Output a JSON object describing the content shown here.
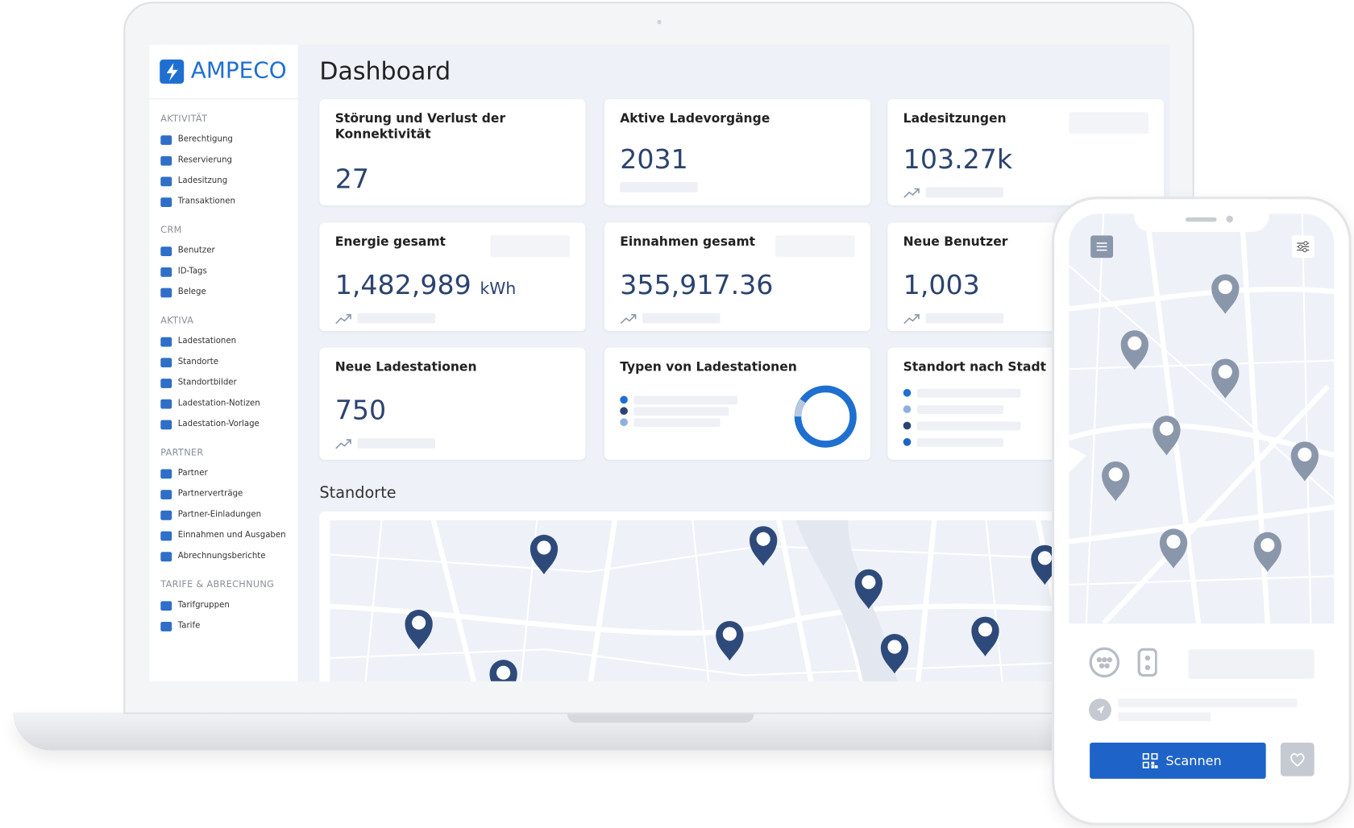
{
  "brand": "AMPECO",
  "title": "Dashboard",
  "sidebar": {
    "sections": [
      {
        "heading": "AKTIVITÄT",
        "items": [
          "Berechtigung",
          "Reservierung",
          "Ladesitzung",
          "Transaktionen"
        ]
      },
      {
        "heading": "CRM",
        "items": [
          "Benutzer",
          "ID-Tags",
          "Belege"
        ]
      },
      {
        "heading": "AKTIVA",
        "items": [
          "Ladestationen",
          "Standorte",
          "Standortbilder",
          "Ladestation-Notizen",
          "Ladestation-Vorlage"
        ]
      },
      {
        "heading": "PARTNER",
        "items": [
          "Partner",
          "Partnerverträge",
          "Partner-Einladungen",
          "Einnahmen und Ausgaben",
          "Abrechnungsberichte"
        ]
      },
      {
        "heading": "TARIFE & ABRECHNUNG",
        "items": [
          "Tarifgruppen",
          "Tarife"
        ]
      }
    ]
  },
  "cards": [
    {
      "title": "Störung und Verlust der Konnektivität",
      "value": 27
    },
    {
      "title": "Aktive Ladevorgänge",
      "value": 2031
    },
    {
      "title": "Ladesitzungen",
      "value": "103.27k"
    },
    {
      "title": "Energie gesamt",
      "value": "1,482,989",
      "unit": "kWh"
    },
    {
      "title": "Einnahmen gesamt",
      "value": "355,917.36"
    },
    {
      "title": "Neue Benutzer",
      "value": "1,003"
    },
    {
      "title": "Neue Ladestationen",
      "value": 750
    },
    {
      "title": "Typen von Ladestationen"
    },
    {
      "title": "Standort nach Stadt"
    }
  ],
  "map_title": "Standorte",
  "phone": {
    "button": "Scannen"
  }
}
